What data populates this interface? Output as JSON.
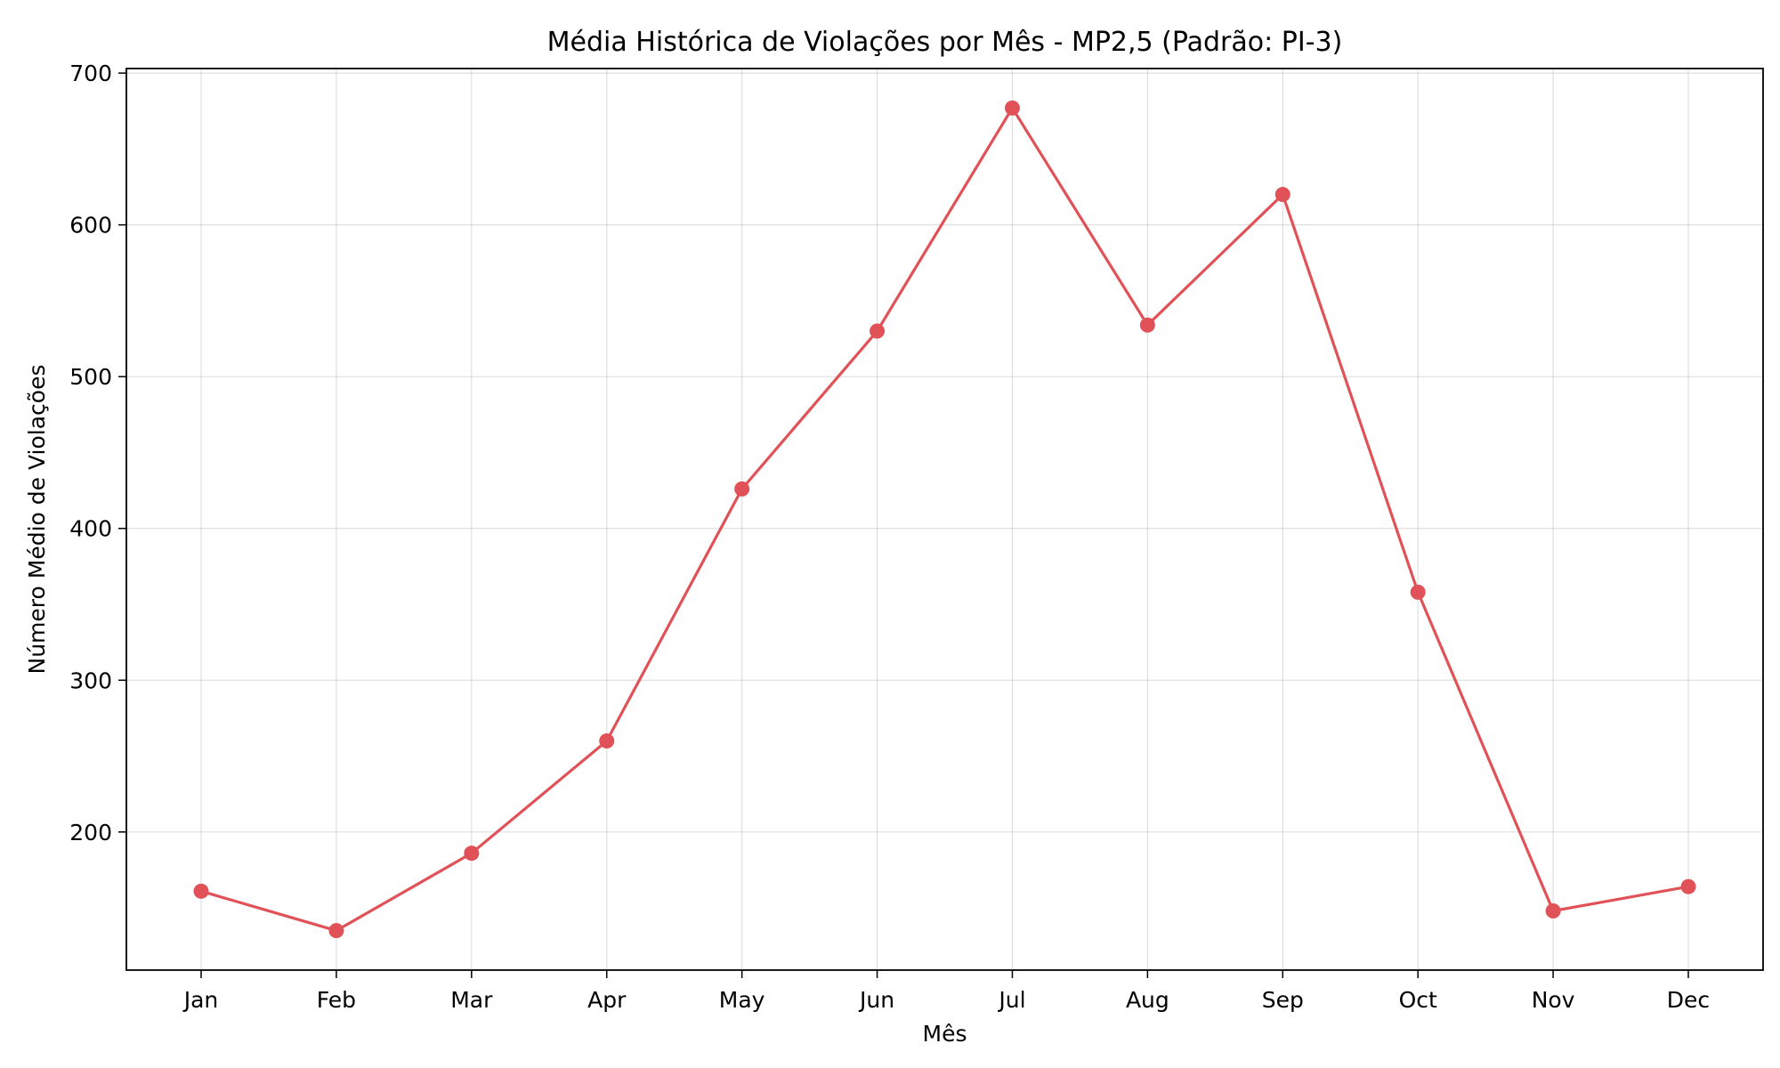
{
  "chart_data": {
    "type": "line",
    "title": "Média Histórica de Violações por Mês - MP2,5 (Padrão: PI-3)",
    "xlabel": "Mês",
    "ylabel": "Número Médio de Violações",
    "categories": [
      "Jan",
      "Feb",
      "Mar",
      "Apr",
      "May",
      "Jun",
      "Jul",
      "Aug",
      "Sep",
      "Oct",
      "Nov",
      "Dec"
    ],
    "series": [
      {
        "values": [
          161,
          135,
          186,
          260,
          426,
          530,
          677,
          534,
          620,
          358,
          148,
          164
        ],
        "color": "#e05257",
        "marker": "circle"
      }
    ],
    "yticks": [
      200,
      300,
      400,
      500,
      600,
      700
    ],
    "ylim": [
      109,
      703
    ],
    "grid": true,
    "legend": "none"
  }
}
